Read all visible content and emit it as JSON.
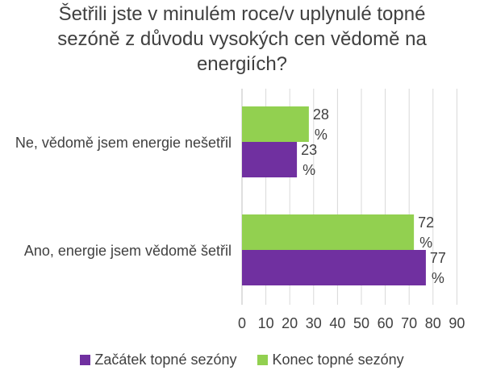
{
  "chart_data": {
    "type": "bar",
    "orientation": "horizontal",
    "title_lines": [
      "Šetřili jste v minulém roce/v uplynulé topné",
      "sezóně z důvodu vysokých cen vědomě na",
      "energiích?"
    ],
    "categories": [
      "Ne, vědomě jsem energie nešetřil",
      "Ano, energie jsem vědomě šetřil"
    ],
    "series": [
      {
        "name": "Začátek topné sezóny",
        "color": "#7030A0",
        "values": [
          23,
          77
        ],
        "labels": [
          "23 %",
          "77 %"
        ]
      },
      {
        "name": "Konec topné sezóny",
        "color": "#92D050",
        "values": [
          28,
          72
        ],
        "labels": [
          "28 %",
          "72 %"
        ]
      }
    ],
    "xlim": [
      0,
      90
    ],
    "xticks": [
      "0",
      "10",
      "20",
      "30",
      "40",
      "50",
      "60",
      "70",
      "80",
      "90"
    ],
    "grid": true,
    "legend_position": "bottom"
  }
}
